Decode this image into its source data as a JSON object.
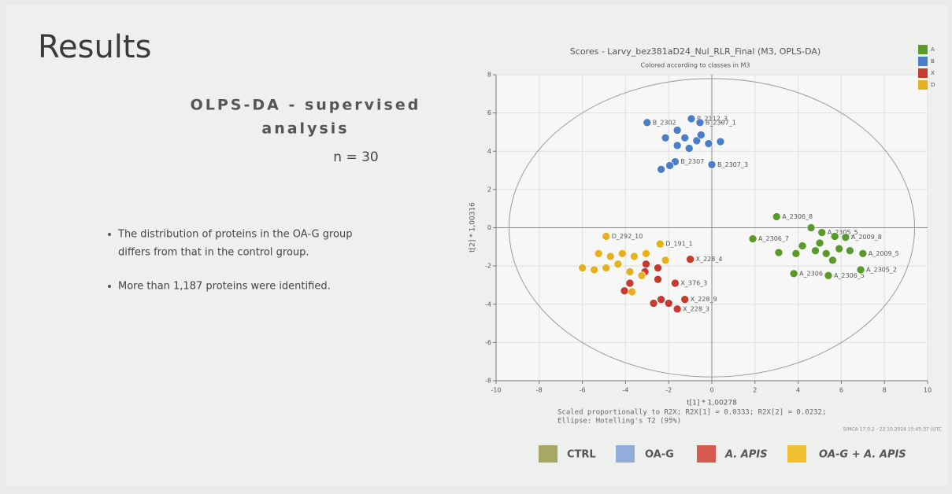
{
  "slide": {
    "title": "Results",
    "heading": [
      "OLPS-DA - supervised",
      "analysis"
    ],
    "n": "n = 30",
    "bullets": [
      "The distribution of proteins in the OA-G group",
      "differs from that in the control group.",
      "More than 1,187 proteins were identified."
    ]
  },
  "legend": [
    {
      "name": "CTRL",
      "color": "#a9a862"
    },
    {
      "name": "OA-G",
      "color": "#93acd9"
    },
    {
      "name": "A. APIS",
      "color": "#d65a4e"
    },
    {
      "name": "OA-G + A. APIS",
      "color": "#f0c030"
    }
  ],
  "chart_data": {
    "type": "scatter",
    "title": "Scores - Larvy_bez381aD24_Nul_RLR_Final (M3, OPLS-DA)",
    "subtitle": "Colored according to classes in M3",
    "xlabel": "t[1] * 1,00278",
    "ylabel": "t[2] * 1,00316",
    "footnote": [
      "Scaled proportionally to R2X; R2X[1] = 0.0333; R2X[2] = 0.0232;",
      "Ellipse: Hotelling's T2 (95%)"
    ],
    "software": "SIMCA 17.0.2 - 22.10.2024 15:45:37 (UTC",
    "xlim": [
      -10,
      10
    ],
    "ylim": [
      -8,
      8
    ],
    "xticks": [
      -10,
      -8,
      -6,
      -4,
      -2,
      0,
      2,
      4,
      6,
      8,
      10
    ],
    "yticks": [
      -8,
      -6,
      -4,
      -2,
      0,
      2,
      4,
      6,
      8
    ],
    "grid": true,
    "ellipse": [
      9.4,
      7.8
    ],
    "series": [
      {
        "name": "A",
        "color": "#5a9a2a",
        "x": [
          3.0,
          1.9,
          3.8,
          5.4,
          6.9,
          4.6,
          5.1,
          5.7,
          6.2,
          4.2,
          4.8,
          5.3,
          5.9,
          6.4,
          7.0,
          3.9,
          3.1,
          5.0,
          5.6
        ],
        "values": [
          0.58,
          -0.58,
          -2.4,
          -2.5,
          -2.2,
          0.0,
          -0.25,
          -0.45,
          -0.5,
          -0.95,
          -1.2,
          -1.35,
          -1.1,
          -1.2,
          -1.35,
          -1.35,
          -1.3,
          -0.8,
          -1.7
        ],
        "labels": [
          "A_2306_8",
          "A_2306_7",
          "A_2306",
          "A_2306_5",
          "A_2305_2",
          null,
          "A_2305_5",
          null,
          "A_2009_8",
          null,
          null,
          null,
          null,
          null,
          "A_2009_5",
          null,
          null,
          null,
          null
        ]
      },
      {
        "name": "B",
        "color": "#4a7fc8",
        "x": [
          -3.0,
          -0.95,
          -0.55,
          -1.6,
          -1.25,
          -2.15,
          -0.7,
          -0.15,
          -1.05,
          -1.6,
          -1.7,
          0.0,
          -2.35,
          -1.95,
          -0.5,
          0.4
        ],
        "values": [
          5.5,
          5.7,
          5.5,
          5.1,
          4.7,
          4.7,
          4.55,
          4.4,
          4.15,
          4.3,
          3.45,
          3.3,
          3.05,
          3.25,
          4.85,
          4.5
        ],
        "labels": [
          "B_2302",
          "B_2112_3",
          "B_2307_1",
          null,
          null,
          null,
          null,
          null,
          null,
          null,
          "B_2307",
          "B_2307_3",
          null,
          null,
          null,
          null
        ]
      },
      {
        "name": "X",
        "color": "#c83a30",
        "x": [
          -1.0,
          -1.7,
          -2.5,
          -3.1,
          -3.8,
          -4.05,
          -2.35,
          -2.0,
          -1.6,
          -2.7,
          -1.25,
          -2.5,
          -3.05
        ],
        "values": [
          -1.65,
          -2.9,
          -2.7,
          -2.3,
          -2.9,
          -3.3,
          -3.75,
          -3.95,
          -4.25,
          -3.95,
          -3.75,
          -2.1,
          -1.9
        ],
        "labels": [
          "X_228_4",
          "X_376_3",
          null,
          null,
          null,
          null,
          null,
          null,
          "X_228_3",
          null,
          "X_228_9",
          null,
          null
        ]
      },
      {
        "name": "D",
        "color": "#e6b020",
        "x": [
          -4.9,
          -2.4,
          -5.25,
          -4.7,
          -4.15,
          -3.6,
          -3.05,
          -6.0,
          -5.45,
          -4.9,
          -4.35,
          -3.8,
          -3.25,
          -3.7,
          -2.15
        ],
        "values": [
          -0.45,
          -0.85,
          -1.35,
          -1.5,
          -1.35,
          -1.5,
          -1.35,
          -2.1,
          -2.2,
          -2.1,
          -1.9,
          -2.3,
          -2.5,
          -3.35,
          -1.7
        ],
        "labels": [
          "D_292_10",
          "D_191_1",
          null,
          null,
          null,
          null,
          null,
          null,
          null,
          null,
          null,
          null,
          null,
          null,
          null
        ]
      }
    ]
  }
}
